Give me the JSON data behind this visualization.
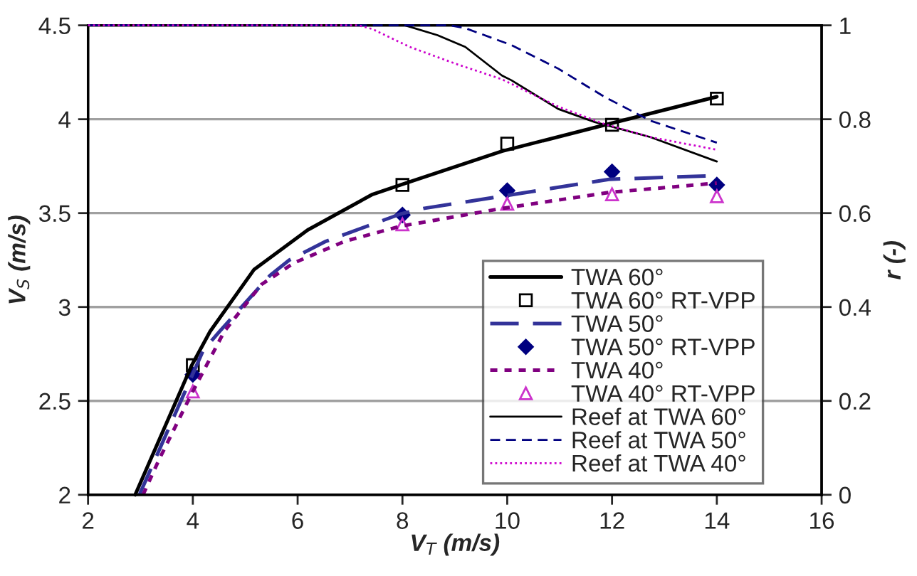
{
  "chart_data": {
    "type": "line",
    "xlabel": "V$_{T}$ (m/s)",
    "ylabel": "V$_{S}$ (m/s)",
    "y2label": "r (-)",
    "xlim": [
      2,
      16
    ],
    "xticks": [
      2,
      4,
      6,
      8,
      10,
      12,
      14,
      16
    ],
    "ylim": [
      2,
      4.5
    ],
    "yticks": [
      2,
      2.5,
      3,
      3.5,
      4,
      4.5
    ],
    "y2lim": [
      0,
      1
    ],
    "y2ticks": [
      0,
      0.2,
      0.4,
      0.6,
      0.8,
      1
    ],
    "grid": "y",
    "legend": "bottom right",
    "series": [
      {
        "name": "TWA 60°",
        "line_style": "solid",
        "marker": "none",
        "color": "#000000",
        "x": [
          2.9,
          3.98,
          4.33,
          5.17,
          6.19,
          7.43,
          7.96,
          9.9,
          11.94,
          14
        ],
        "values": [
          2.0,
          2.69,
          2.87,
          3.2,
          3.41,
          3.6,
          3.65,
          3.83,
          3.975,
          4.12
        ]
      },
      {
        "name": "TWA 60° RT-VPP",
        "type": "scatter",
        "marker": "square",
        "color": "#000000",
        "x": [
          4,
          8,
          10,
          12,
          14
        ],
        "values": [
          2.69,
          3.65,
          3.87,
          3.97,
          4.11
        ]
      },
      {
        "name": "TWA 50°",
        "line_style": "dashed",
        "marker": "none",
        "color": "#333399",
        "x": [
          2.98,
          4.2,
          4.51,
          5.48,
          5.84,
          6.54,
          7.96,
          8.4,
          9.9,
          11.94,
          14
        ],
        "values": [
          2.0,
          2.77,
          2.87,
          3.17,
          3.25,
          3.35,
          3.495,
          3.525,
          3.59,
          3.68,
          3.7
        ]
      },
      {
        "name": "TWA 50° RT-VPP",
        "type": "scatter",
        "marker": "diamond",
        "color": "#000080",
        "x": [
          4,
          8,
          10,
          12,
          14
        ],
        "values": [
          2.64,
          3.49,
          3.62,
          3.72,
          3.65
        ]
      },
      {
        "name": "TWA 40°",
        "line_style": "dotted",
        "marker": "none",
        "color": "#800080",
        "x": [
          3.05,
          3.36,
          3.98,
          4.6,
          5.31,
          5.93,
          6.9,
          7.96,
          9.9,
          11.94,
          14
        ],
        "values": [
          2.0,
          2.19,
          2.54,
          2.87,
          3.12,
          3.235,
          3.35,
          3.43,
          3.525,
          3.61,
          3.66
        ]
      },
      {
        "name": "TWA 40° RT-VPP",
        "type": "scatter",
        "marker": "triangle",
        "color": "#cc33cc",
        "x": [
          4,
          8,
          10,
          12,
          14
        ],
        "values": [
          2.55,
          3.44,
          3.55,
          3.6,
          3.59
        ]
      },
      {
        "name": "Reef at TWA 60°",
        "axis": "y2",
        "line_style": "solid",
        "marker": "none",
        "color": "#000000",
        "x": [
          2,
          8.05,
          8.67,
          9.2,
          9.9,
          10.08,
          10.97,
          11.67,
          12.73,
          14
        ],
        "values": [
          1,
          1,
          0.979,
          0.954,
          0.893,
          0.883,
          0.822,
          0.794,
          0.762,
          0.71
        ]
      },
      {
        "name": "Reef at TWA 50°",
        "axis": "y2",
        "line_style": "dashed",
        "marker": "none",
        "color": "#000080",
        "x": [
          2,
          8.9,
          9.2,
          10.08,
          10.97,
          11.85,
          12.73,
          14
        ],
        "values": [
          1,
          1,
          0.994,
          0.958,
          0.908,
          0.848,
          0.797,
          0.75
        ]
      },
      {
        "name": "Reef at TWA 40°",
        "axis": "y2",
        "line_style": "dotted",
        "marker": "none",
        "color": "#cc00cc",
        "x": [
          2,
          7.16,
          7.43,
          8.14,
          9.02,
          9.9,
          10.97,
          11.85,
          12.73,
          14
        ],
        "values": [
          1,
          1,
          0.992,
          0.954,
          0.918,
          0.885,
          0.827,
          0.79,
          0.762,
          0.735
        ]
      }
    ]
  }
}
